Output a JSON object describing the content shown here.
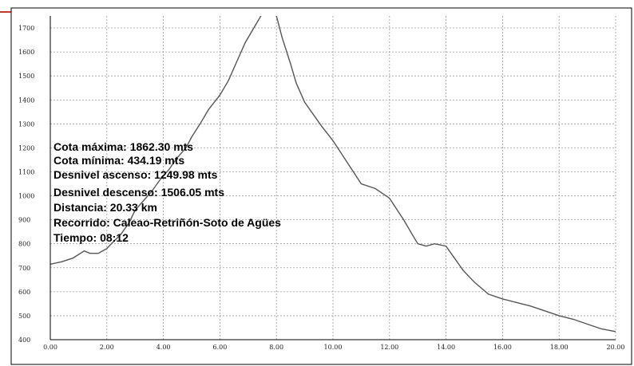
{
  "chart_data": {
    "type": "line",
    "xlim": [
      0,
      20
    ],
    "ylim": [
      400,
      1750
    ],
    "x_ticks": [
      0,
      2,
      4,
      6,
      8,
      10,
      12,
      14,
      16,
      18,
      20
    ],
    "x_tick_labels": [
      "0.00",
      "2.00",
      "4.00",
      "6.00",
      "8.00",
      "10.00",
      "12.00",
      "14.00",
      "16.00",
      "18.00",
      "20.00"
    ],
    "y_ticks": [
      400,
      500,
      600,
      700,
      800,
      900,
      1000,
      1100,
      1200,
      1300,
      1400,
      1500,
      1600,
      1700
    ],
    "y_tick_labels": [
      "400",
      "500",
      "600",
      "700",
      "800",
      "900",
      "1000",
      "1100",
      "1200",
      "1300",
      "1400",
      "1500",
      "1600",
      "1700"
    ],
    "grid": true,
    "series": [
      {
        "x": [
          0.0,
          0.4,
          0.8,
          1.2,
          1.4,
          1.7,
          2.0,
          2.2,
          2.5,
          2.8,
          3.0,
          3.3,
          3.6,
          3.9,
          4.2,
          4.5,
          4.8,
          5.0,
          5.3,
          5.6,
          6.0,
          6.3,
          6.6,
          6.9,
          7.2,
          7.5,
          7.8,
          8.0,
          8.2,
          8.5,
          8.7,
          9.0,
          9.3,
          9.6,
          10.0,
          10.5,
          11.0,
          11.5,
          12.0,
          12.5,
          12.8,
          13.0,
          13.3,
          13.6,
          14.0,
          14.3,
          14.6,
          15.0,
          15.5,
          16.0,
          16.5,
          17.0,
          17.5,
          18.0,
          18.5,
          19.0,
          19.5,
          20.0
        ],
        "y": [
          715,
          725,
          740,
          770,
          760,
          760,
          780,
          805,
          840,
          890,
          940,
          980,
          1020,
          1070,
          1110,
          1160,
          1200,
          1245,
          1300,
          1360,
          1420,
          1480,
          1560,
          1640,
          1700,
          1760,
          1800,
          1750,
          1660,
          1550,
          1470,
          1390,
          1340,
          1290,
          1230,
          1140,
          1050,
          1030,
          990,
          900,
          840,
          800,
          790,
          800,
          790,
          740,
          690,
          640,
          590,
          570,
          555,
          540,
          520,
          500,
          485,
          465,
          445,
          434
        ]
      }
    ]
  },
  "info": {
    "lines": [
      "Cota máxima: 1862.30 mts",
      "Cota mínima: 434.19 mts",
      "Desnivel ascenso: 1249.98 mts",
      "Desnivel descenso: 1506.05 mts",
      "Distancia: 20.33 km",
      "Recorrido: Caleao-Retriñón-Soto de Agües",
      "Tiempo: 08:12"
    ]
  },
  "colors": {
    "accent": "#c0392b",
    "line": "#555555",
    "grid": "#9a9a9a",
    "axis": "#000000"
  }
}
